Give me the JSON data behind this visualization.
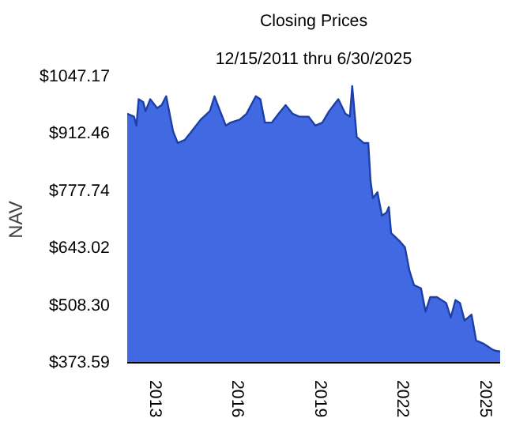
{
  "chart_data": {
    "type": "area",
    "title": "Closing Prices",
    "subtitle": "12/15/2011 thru 6/30/2025",
    "ylabel": "NAV",
    "x": [
      "2011-12-15",
      "2012-03-15",
      "2012-04-15",
      "2012-05-15",
      "2012-07-15",
      "2012-08-15",
      "2012-10-15",
      "2013-01-15",
      "2013-03-15",
      "2013-05-15",
      "2013-07-15",
      "2013-08-15",
      "2013-10-15",
      "2014-01-15",
      "2014-04-15",
      "2014-08-15",
      "2014-12-15",
      "2015-02-15",
      "2015-04-15",
      "2015-07-15",
      "2015-09-15",
      "2016-01-15",
      "2016-04-15",
      "2016-08-15",
      "2016-10-15",
      "2016-12-15",
      "2017-03-15",
      "2017-06-15",
      "2017-09-15",
      "2017-12-15",
      "2018-03-15",
      "2018-07-15",
      "2018-10-15",
      "2019-01-15",
      "2019-04-15",
      "2019-06-15",
      "2019-08-15",
      "2019-11-15",
      "2020-01-15",
      "2020-02-15",
      "2020-04-15",
      "2020-07-15",
      "2020-09-15",
      "2020-10-15",
      "2020-11-15",
      "2021-01-15",
      "2021-03-15",
      "2021-05-15",
      "2021-06-15",
      "2021-07-15",
      "2021-11-15",
      "2022-01-15",
      "2022-03-15",
      "2022-05-15",
      "2022-08-15",
      "2022-10-15",
      "2022-12-15",
      "2023-03-15",
      "2023-07-15",
      "2023-09-15",
      "2023-11-15",
      "2024-01-15",
      "2024-03-15",
      "2024-06-15",
      "2024-08-15",
      "2024-11-15",
      "2025-01-15",
      "2025-03-15",
      "2025-05-15",
      "2025-06-30"
    ],
    "series": [
      {
        "color": "#4169e1",
        "values": [
          960,
          953,
          932,
          994,
          987,
          966,
          994,
          973,
          980,
          1001,
          946,
          918,
          891,
          898,
          918,
          946,
          966,
          1001,
          973,
          932,
          939,
          946,
          960,
          1001,
          994,
          939,
          939,
          960,
          980,
          960,
          953,
          953,
          932,
          939,
          966,
          980,
          994,
          960,
          953,
          1025,
          905,
          891,
          891,
          802,
          761,
          775,
          720,
          727,
          740,
          679,
          658,
          645,
          590,
          556,
          549,
          494,
          528,
          528,
          514,
          480,
          521,
          514,
          473,
          487,
          426,
          419,
          412,
          405,
          401,
          400
        ]
      }
    ],
    "xlim": [
      "2011-12-15",
      "2025-06-30"
    ],
    "xticks": [
      {
        "value": "2013",
        "label": "2013"
      },
      {
        "value": "2016",
        "label": "2016"
      },
      {
        "value": "2019",
        "label": "2019"
      },
      {
        "value": "2022",
        "label": "2022"
      },
      {
        "value": "2025",
        "label": "2025"
      }
    ],
    "ylim": [
      373.59,
      1047.17
    ],
    "yticks": [
      {
        "value": 373.59,
        "label": "$373.59"
      },
      {
        "value": 508.3,
        "label": "$508.30"
      },
      {
        "value": 643.02,
        "label": "$643.02"
      },
      {
        "value": 777.74,
        "label": "$777.74"
      },
      {
        "value": 912.46,
        "label": "$912.46"
      },
      {
        "value": 1047.17,
        "label": "$1047.17"
      }
    ],
    "data_labels": false
  }
}
